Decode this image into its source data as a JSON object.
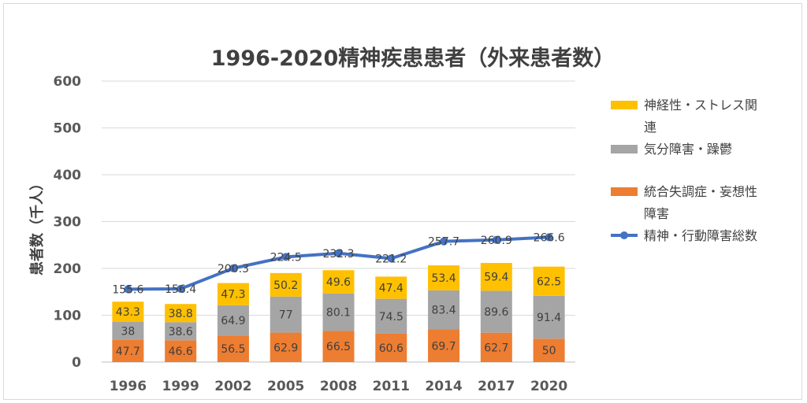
{
  "chart_data": {
    "type": "bar",
    "stacked": true,
    "title": "1996-2020精神疾患患者（外来患者数）",
    "ylabel": "患者数（千人）",
    "xlabel": "",
    "ylim": [
      0,
      600
    ],
    "yticks": [
      0,
      100,
      200,
      300,
      400,
      500,
      600
    ],
    "categories": [
      "1996",
      "1999",
      "2002",
      "2005",
      "2008",
      "2011",
      "2014",
      "2017",
      "2020"
    ],
    "series": [
      {
        "name": "統合失調症・妄想性障害",
        "type": "bar",
        "color": "#ed7d31",
        "values": [
          47.7,
          46.6,
          56.5,
          62.9,
          66.5,
          60.6,
          69.7,
          62.7,
          50
        ]
      },
      {
        "name": "気分障害・躁鬱",
        "type": "bar",
        "color": "#a5a5a5",
        "values": [
          38,
          38.6,
          64.9,
          77,
          80.1,
          74.5,
          83.4,
          89.6,
          91.4
        ]
      },
      {
        "name": "神経性・ストレス関連",
        "type": "bar",
        "color": "#ffc000",
        "values": [
          43.3,
          38.8,
          47.3,
          50.2,
          49.6,
          47.4,
          53.4,
          59.4,
          62.5
        ]
      },
      {
        "name": "精神・行動障害総数",
        "type": "line",
        "color": "#4472c4",
        "values": [
          155.6,
          156.4,
          200.3,
          224.5,
          232.3,
          221.2,
          257.7,
          260.9,
          266.6
        ]
      }
    ],
    "legend": {
      "position": "right",
      "order": [
        2,
        1,
        0,
        3
      ],
      "entries": [
        {
          "line1": "神経性・ストレス関",
          "line2": "連"
        },
        {
          "line1": "気分障害・躁鬱",
          "line2": ""
        },
        {
          "line1": "統合失調症・妄想性",
          "line2": "障害"
        },
        {
          "line1": "精神・行動障害総数",
          "line2": ""
        }
      ]
    }
  }
}
